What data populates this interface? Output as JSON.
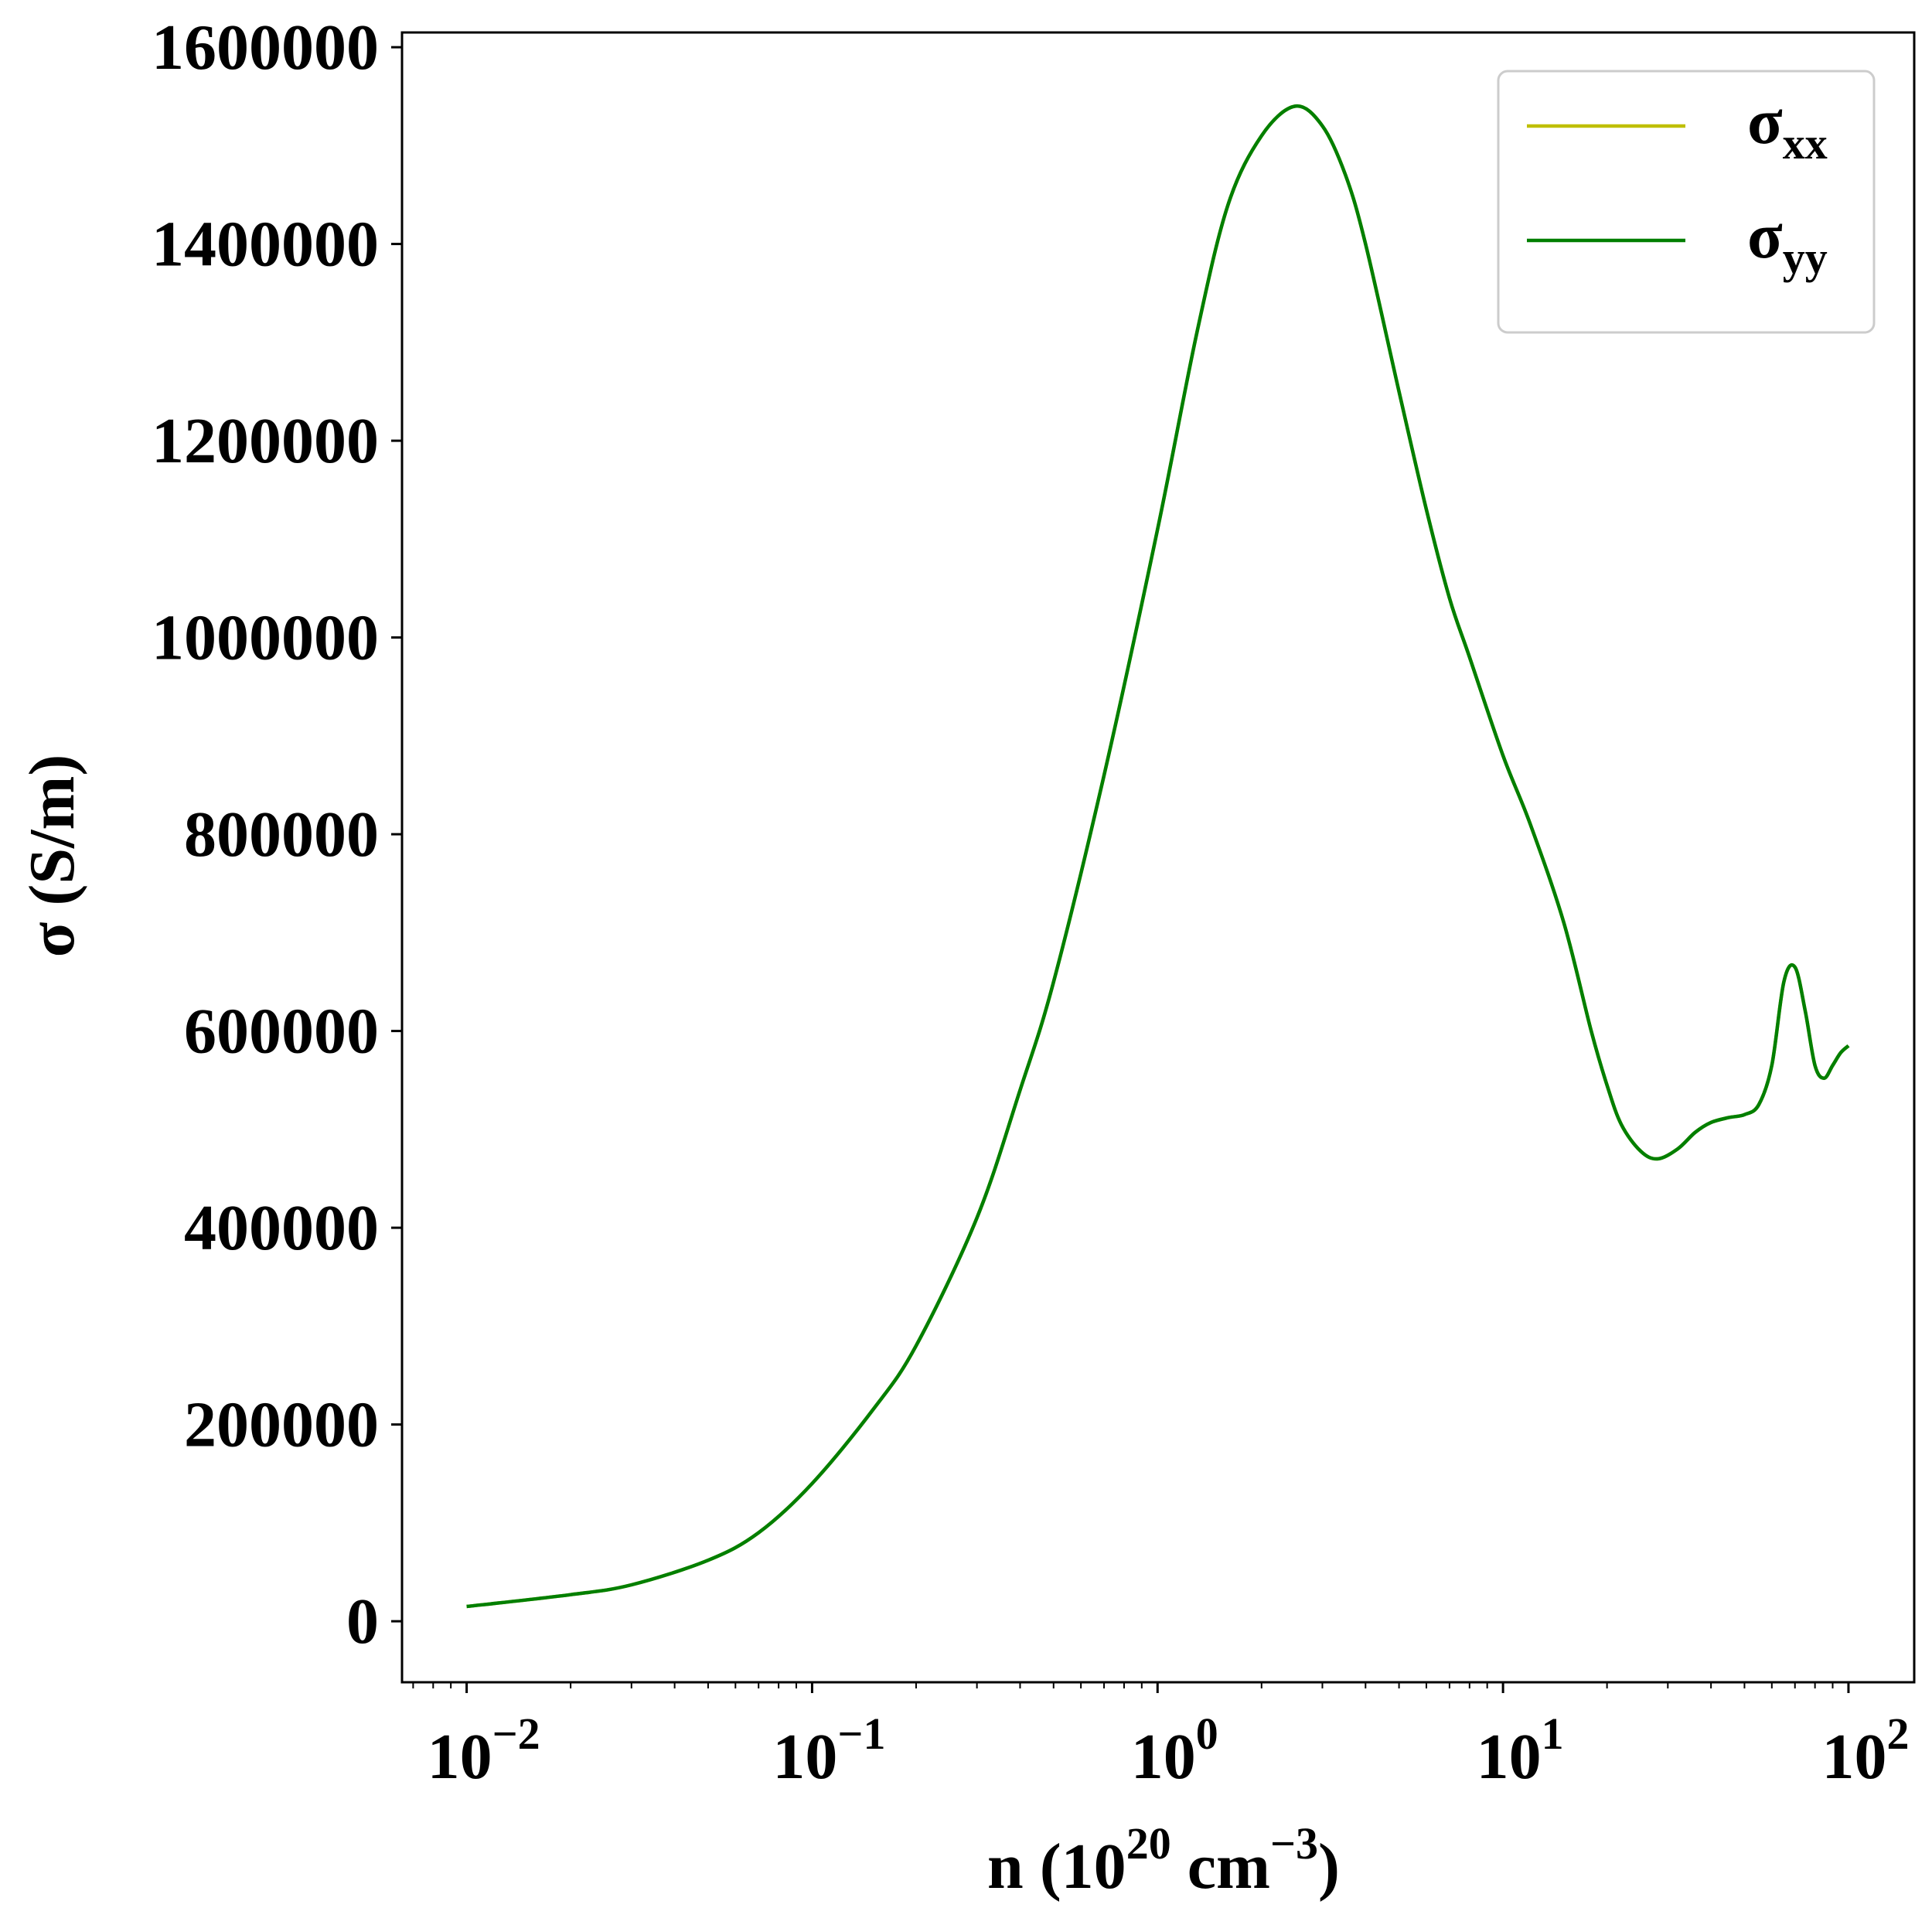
{
  "chart_data": {
    "type": "line",
    "xlabel": {
      "base": "n (10",
      "exp1": "20",
      "mid": " cm",
      "exp2": "−3",
      "close": ")"
    },
    "ylabel": "σ (S/m)",
    "xscale": "log",
    "xlim": [
      0.0065,
      155
    ],
    "ylim": [
      -62000,
      1615000
    ],
    "x_ticks": [
      {
        "value": 0.01,
        "base": "10",
        "exp": "−2"
      },
      {
        "value": 0.1,
        "base": "10",
        "exp": "−1"
      },
      {
        "value": 1,
        "base": "10",
        "exp": "0"
      },
      {
        "value": 10,
        "base": "10",
        "exp": "1"
      },
      {
        "value": 100,
        "base": "10",
        "exp": "2"
      }
    ],
    "y_ticks": [
      {
        "value": 0,
        "label": "0"
      },
      {
        "value": 200000,
        "label": "200000"
      },
      {
        "value": 400000,
        "label": "400000"
      },
      {
        "value": 600000,
        "label": "600000"
      },
      {
        "value": 800000,
        "label": "800000"
      },
      {
        "value": 1000000,
        "label": "1000000"
      },
      {
        "value": 1200000,
        "label": "1200000"
      },
      {
        "value": 1400000,
        "label": "1400000"
      },
      {
        "value": 1600000,
        "label": "1600000"
      }
    ],
    "legend": {
      "position": "top-right",
      "entries": [
        {
          "sym": "σ",
          "sub": "xx",
          "color": "#bfbf00"
        },
        {
          "sym": "σ",
          "sub": "yy",
          "color": "#007f00"
        }
      ]
    },
    "series": [
      {
        "color": "#bfbf00",
        "x": [
          0.01,
          0.02,
          0.03,
          0.05,
          0.07,
          0.1,
          0.15,
          0.2,
          0.3,
          0.4,
          0.5,
          0.7,
          1.0,
          1.3,
          1.6,
          2.0,
          2.5,
          3.0,
          3.5,
          4.0,
          5.0,
          6.0,
          7.0,
          8.0,
          10.0,
          12.0,
          15.0,
          18.0,
          20.0,
          22.0,
          25.0,
          28.0,
          32.0,
          36.0,
          40.0,
          45.0,
          50.0,
          55.0,
          60.0,
          65.0,
          70.0,
          75.0,
          80.0,
          85.0,
          90.0,
          95.0,
          100.0
        ],
        "y": [
          15000,
          27000,
          37000,
          62000,
          90000,
          140000,
          215000,
          280000,
          410000,
          540000,
          650000,
          860000,
          1110000,
          1310000,
          1440000,
          1510000,
          1540000,
          1520000,
          1470000,
          1400000,
          1250000,
          1130000,
          1040000,
          980000,
          880000,
          810000,
          710000,
          600000,
          545000,
          505000,
          478000,
          470000,
          480000,
          497000,
          507000,
          512000,
          515000,
          525000,
          565000,
          650000,
          665000,
          620000,
          565000,
          552000,
          565000,
          578000,
          585000
        ]
      },
      {
        "color": "#007f00",
        "x": [
          0.01,
          0.02,
          0.03,
          0.05,
          0.07,
          0.1,
          0.15,
          0.2,
          0.3,
          0.4,
          0.5,
          0.7,
          1.0,
          1.3,
          1.6,
          2.0,
          2.5,
          3.0,
          3.5,
          4.0,
          5.0,
          6.0,
          7.0,
          8.0,
          10.0,
          12.0,
          15.0,
          18.0,
          20.0,
          22.0,
          25.0,
          28.0,
          32.0,
          36.0,
          40.0,
          45.0,
          50.0,
          55.0,
          60.0,
          65.0,
          70.0,
          75.0,
          80.0,
          85.0,
          90.0,
          95.0,
          100.0
        ],
        "y": [
          15000,
          27000,
          37000,
          62000,
          90000,
          140000,
          215000,
          280000,
          410000,
          540000,
          650000,
          860000,
          1110000,
          1310000,
          1440000,
          1510000,
          1540000,
          1520000,
          1470000,
          1400000,
          1250000,
          1130000,
          1040000,
          980000,
          880000,
          810000,
          710000,
          600000,
          545000,
          505000,
          478000,
          470000,
          480000,
          497000,
          507000,
          512000,
          515000,
          525000,
          565000,
          650000,
          665000,
          620000,
          565000,
          552000,
          565000,
          578000,
          585000
        ]
      }
    ]
  }
}
